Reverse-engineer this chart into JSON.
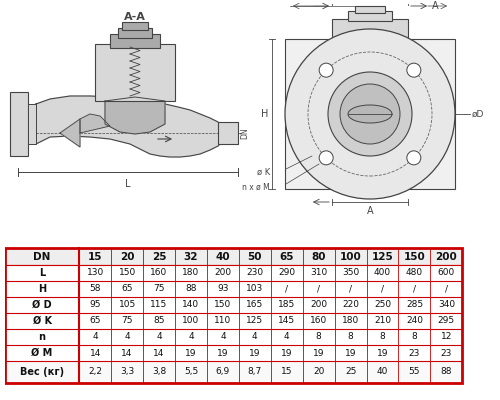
{
  "table_headers": [
    "DN",
    "15",
    "20",
    "25",
    "32",
    "40",
    "50",
    "65",
    "80",
    "100",
    "125",
    "150",
    "200"
  ],
  "rows": [
    {
      "label": "L",
      "values": [
        "130",
        "150",
        "160",
        "180",
        "200",
        "230",
        "290",
        "310",
        "350",
        "400",
        "480",
        "600"
      ]
    },
    {
      "label": "H",
      "values": [
        "58",
        "65",
        "75",
        "88",
        "93",
        "103",
        "/",
        "/",
        "/",
        "/",
        "/",
        "/"
      ]
    },
    {
      "label": "Ø D",
      "values": [
        "95",
        "105",
        "115",
        "140",
        "150",
        "165",
        "185",
        "200",
        "220",
        "250",
        "285",
        "340"
      ]
    },
    {
      "label": "Ø K",
      "values": [
        "65",
        "75",
        "85",
        "100",
        "110",
        "125",
        "145",
        "160",
        "180",
        "210",
        "240",
        "295"
      ]
    },
    {
      "label": "n",
      "values": [
        "4",
        "4",
        "4",
        "4",
        "4",
        "4",
        "4",
        "8",
        "8",
        "8",
        "8",
        "12"
      ]
    },
    {
      "label": "Ø M",
      "values": [
        "14",
        "14",
        "14",
        "19",
        "19",
        "19",
        "19",
        "19",
        "19",
        "19",
        "23",
        "23"
      ]
    },
    {
      "label": "Вес (кг)",
      "values": [
        "2,2",
        "3,3",
        "3,8",
        "5,5",
        "6,9",
        "8,7",
        "15",
        "20",
        "25",
        "40",
        "55",
        "88"
      ]
    }
  ],
  "border_color": "#cc0000",
  "bg_color": "#ffffff",
  "line_color": "#444444",
  "fill_color": "#d8d8d8",
  "fill_dark": "#aaaaaa"
}
